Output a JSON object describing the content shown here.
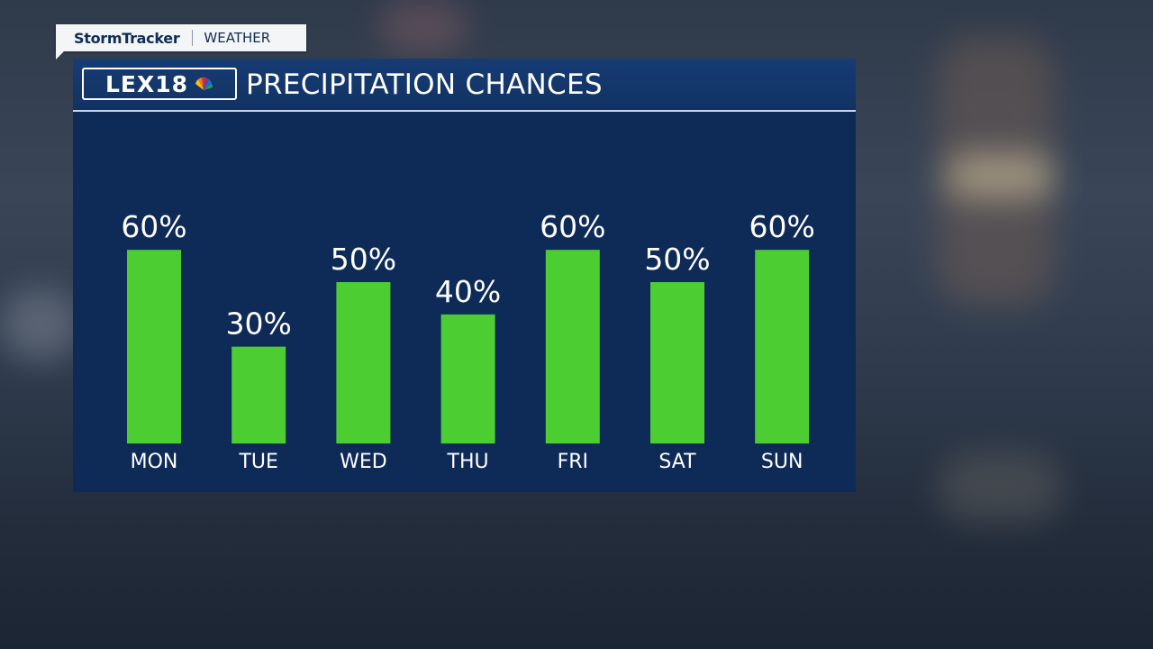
{
  "tag": {
    "brand": "StormTracker",
    "section": "WEATHER"
  },
  "logo": {
    "text": "LEX18"
  },
  "colors": {
    "bar": "#4ccd32",
    "panel": "#0e2a57",
    "header": "#163c74"
  },
  "chart_data": {
    "type": "bar",
    "title": "PRECIPITATION CHANCES",
    "categories": [
      "MON",
      "TUE",
      "WED",
      "THU",
      "FRI",
      "SAT",
      "SUN"
    ],
    "values": [
      60,
      30,
      50,
      40,
      60,
      50,
      60
    ],
    "value_labels": [
      "60%",
      "30%",
      "50%",
      "40%",
      "60%",
      "50%",
      "60%"
    ],
    "unit": "%",
    "ylim": [
      0,
      100
    ],
    "grid": false,
    "xlabel": "",
    "ylabel": ""
  }
}
